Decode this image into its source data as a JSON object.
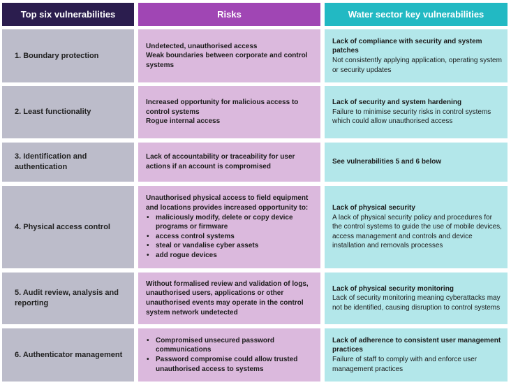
{
  "headers": {
    "col1": "Top six vulnerabilities",
    "col2": "Risks",
    "col3": "Water sector key vulnerabilities"
  },
  "rows": [
    {
      "vuln": "1. Boundary protection",
      "risk_text": [
        "Undetected, unauthorised access",
        "Weak boundaries between corporate and control systems"
      ],
      "key_title": "Lack of compliance with security and system patches",
      "key_desc": "Not consistently applying application, operating system or security updates"
    },
    {
      "vuln": "2. Least functionality",
      "risk_text": [
        "Increased opportunity for malicious access to control systems",
        "Rogue internal access"
      ],
      "key_title": "Lack of security and system hardening",
      "key_desc": "Failure to minimise security risks in control systems which could allow unauthorised access"
    },
    {
      "vuln": "3. Identification and authentication",
      "risk_text": [
        "Lack of accountability or traceability for user actions if an account is compromised"
      ],
      "key_title": "See vulnerabilities 5 and 6 below",
      "key_desc": ""
    },
    {
      "vuln": "4. Physical access control",
      "risk_intro": "Unauthorised physical access to field equipment and locations provides increased opportunity to:",
      "risk_bullets": [
        "maliciously modify, delete or copy device programs or firmware",
        "access control systems",
        "steal or vandalise cyber assets",
        "add rogue devices"
      ],
      "key_title": "Lack of physical security",
      "key_desc": "A lack of physical security policy and procedures for the control systems to guide the use of mobile devices, access management and controls and device installation and removals processes"
    },
    {
      "vuln": "5. Audit review, analysis and reporting",
      "risk_text": [
        "Without formalised review and validation of logs, unauthorised users, applications or other unauthorised events may operate in the control system network undetected"
      ],
      "key_title": "Lack of physical security monitoring",
      "key_desc": "Lack of security monitoring meaning cyberattacks may not be identified, causing disruption to control systems"
    },
    {
      "vuln": "6. Authenticator management",
      "risk_bullets": [
        "Compromised unsecured password communications",
        "Password compromise could allow trusted unauthorised access to systems"
      ],
      "key_title": "Lack of adherence to consistent user management practices",
      "key_desc": "Failure of staff to comply with and enforce user management practices"
    }
  ]
}
